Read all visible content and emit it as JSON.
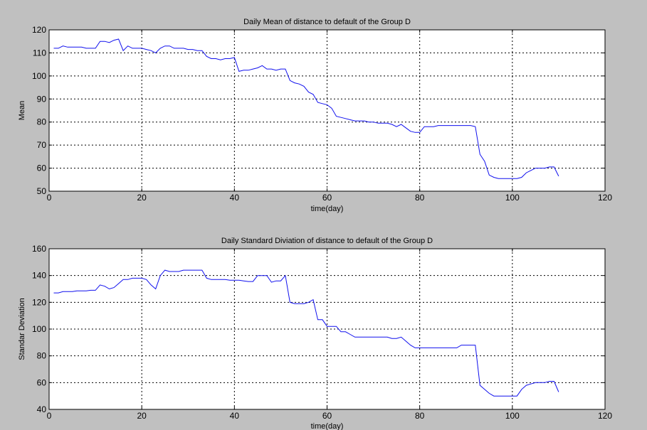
{
  "colors": {
    "figure_background": "#c0c0c0",
    "axes_background": "#ffffff",
    "line": "#1010ee",
    "grid": "#000000"
  },
  "chart_data": [
    {
      "type": "line",
      "title": "Daily Mean of distance to default of the Group D",
      "xlabel": "time(day)",
      "ylabel": "Mean",
      "xlim": [
        0,
        120
      ],
      "ylim": [
        50,
        120
      ],
      "xticks": [
        0,
        20,
        40,
        60,
        80,
        100,
        120
      ],
      "yticks": [
        50,
        60,
        70,
        80,
        90,
        100,
        110,
        120
      ],
      "grid": true,
      "series": [
        {
          "x": [
            1,
            2,
            3,
            4,
            5,
            6,
            7,
            8,
            9,
            10,
            11,
            12,
            13,
            14,
            15,
            16,
            17,
            18,
            19,
            20,
            21,
            22,
            23,
            24,
            25,
            26,
            27,
            28,
            29,
            30,
            31,
            32,
            33,
            34,
            35,
            36,
            37,
            38,
            39,
            40,
            41,
            42,
            43,
            44,
            45,
            46,
            47,
            48,
            49,
            50,
            51,
            52,
            53,
            54,
            55,
            56,
            57,
            58,
            59,
            60,
            61,
            62,
            63,
            64,
            65,
            66,
            67,
            68,
            69,
            70,
            71,
            72,
            73,
            74,
            75,
            76,
            77,
            78,
            79,
            80,
            81,
            82,
            83,
            84,
            85,
            86,
            87,
            88,
            89,
            90,
            91,
            92,
            93,
            94,
            95,
            96,
            97,
            98,
            99,
            100,
            101,
            102,
            103,
            104,
            105,
            106,
            107,
            108,
            109,
            110
          ],
          "y": [
            112,
            112,
            113,
            112.5,
            112.5,
            112.5,
            112.5,
            112,
            112,
            112,
            115,
            115,
            114.5,
            115.5,
            116,
            111,
            113,
            112,
            112,
            112,
            111.5,
            111,
            110,
            112,
            113,
            113,
            112,
            112,
            112,
            111.5,
            111.5,
            111,
            111,
            108.5,
            107.5,
            107.5,
            107,
            107.5,
            107.5,
            108,
            102,
            102.5,
            102.5,
            103,
            103.5,
            104.5,
            103,
            103,
            102.5,
            103,
            103,
            98,
            97,
            96.5,
            95.5,
            93,
            92,
            88.5,
            88,
            87.5,
            86,
            82.5,
            82,
            81.5,
            81,
            80.5,
            80.5,
            80.5,
            80,
            80,
            79.5,
            79.5,
            79.5,
            79,
            78,
            79,
            77.5,
            76,
            75.5,
            75.5,
            78,
            78,
            78,
            78.5,
            78.5,
            78.5,
            78.5,
            78.5,
            78.5,
            78.5,
            78.5,
            78,
            66,
            63,
            57,
            56,
            55.5,
            55.5,
            55.5,
            55.5,
            55.5,
            56,
            58,
            59,
            60,
            60,
            60,
            60.5,
            60.5,
            56.5
          ]
        }
      ]
    },
    {
      "type": "line",
      "title": "Daily Standard Diviation of distance to default of the Group D",
      "xlabel": "time(day)",
      "ylabel": "Standar Deviation",
      "xlim": [
        0,
        120
      ],
      "ylim": [
        40,
        160
      ],
      "xticks": [
        0,
        20,
        40,
        60,
        80,
        100,
        120
      ],
      "yticks": [
        40,
        60,
        80,
        100,
        120,
        140,
        160
      ],
      "grid": true,
      "series": [
        {
          "x": [
            1,
            2,
            3,
            4,
            5,
            6,
            7,
            8,
            9,
            10,
            11,
            12,
            13,
            14,
            15,
            16,
            17,
            18,
            19,
            20,
            21,
            22,
            23,
            24,
            25,
            26,
            27,
            28,
            29,
            30,
            31,
            32,
            33,
            34,
            35,
            36,
            37,
            38,
            39,
            40,
            41,
            42,
            43,
            44,
            45,
            46,
            47,
            48,
            49,
            50,
            51,
            52,
            53,
            54,
            55,
            56,
            57,
            58,
            59,
            60,
            61,
            62,
            63,
            64,
            65,
            66,
            67,
            68,
            69,
            70,
            71,
            72,
            73,
            74,
            75,
            76,
            77,
            78,
            79,
            80,
            81,
            82,
            83,
            84,
            85,
            86,
            87,
            88,
            89,
            90,
            91,
            92,
            93,
            94,
            95,
            96,
            97,
            98,
            99,
            100,
            101,
            102,
            103,
            104,
            105,
            106,
            107,
            108,
            109,
            110
          ],
          "y": [
            127,
            127,
            128,
            128,
            128,
            128.5,
            128.5,
            128.5,
            129,
            129,
            133,
            132,
            130,
            131,
            134,
            137,
            137,
            138,
            138,
            138,
            137,
            133,
            130,
            140,
            144,
            143,
            143,
            143,
            144,
            144,
            144,
            144,
            144,
            138,
            137,
            137,
            137,
            137,
            136.5,
            136.5,
            136.5,
            136,
            135.5,
            135.5,
            140,
            140,
            140,
            135,
            136,
            136,
            140,
            120,
            119,
            119,
            119,
            120,
            122,
            107,
            107,
            102,
            102,
            102,
            98,
            98,
            96,
            94,
            94,
            94,
            94,
            94,
            94,
            94,
            94,
            93,
            93,
            94,
            91,
            88,
            86,
            86,
            86,
            86,
            86,
            86,
            86,
            86,
            86,
            86,
            88,
            88,
            88,
            88,
            58,
            55,
            52,
            50,
            50,
            50,
            50,
            50,
            50,
            55,
            58,
            59,
            60,
            60,
            60,
            61,
            61,
            53
          ]
        }
      ]
    }
  ]
}
